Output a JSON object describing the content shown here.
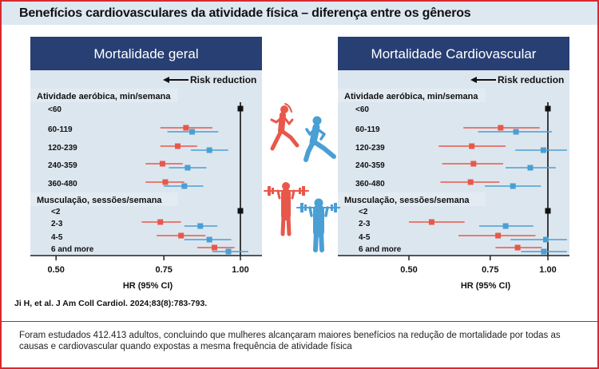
{
  "title": "Benefícios cardiovasculares da atividade física – diferença entre os gêneros",
  "citation": "Ji H, et al. J Am Coll Cardiol. 2024;83(8):783-793.",
  "summary": "Foram estudados 412.413 adultos, concluindo que mulheres alcançaram maiores benefícios na redução de mortalidade por todas as causas e cardiovascular quando expostas a mesma frequência de atividade física",
  "colors": {
    "female": "#e8584a",
    "male": "#4a9fd4",
    "reference": "#111111",
    "header": "#283f73",
    "panel_bg": "#dce6ef",
    "border": "#d9282f"
  },
  "icons": [
    "female-runner-icon",
    "male-runner-icon",
    "female-weightlifter-icon",
    "male-weightlifter-icon"
  ],
  "chart_data": [
    {
      "type": "forest",
      "title": "Mortalidade geral",
      "xlabel": "HR (95% CI)",
      "xscale": "log",
      "xticks": [
        "0.50",
        "0.75",
        "1.00"
      ],
      "annotation": "Risk reduction",
      "groups": [
        {
          "label": "Atividade aeróbica, min/semana",
          "rows": [
            {
              "label": "<60",
              "reference": 1.0
            },
            {
              "label": "60-119",
              "female": [
                0.815,
                0.74,
                0.9
              ],
              "male": [
                0.834,
                0.76,
                0.92
              ]
            },
            {
              "label": "120-239",
              "female": [
                0.79,
                0.74,
                0.85
              ],
              "male": [
                0.89,
                0.83,
                0.955
              ]
            },
            {
              "label": "240-359",
              "female": [
                0.746,
                0.7,
                0.805
              ],
              "male": [
                0.82,
                0.764,
                0.88
              ]
            },
            {
              "label": "360-480",
              "female": [
                0.754,
                0.7,
                0.81
              ],
              "male": [
                0.81,
                0.75,
                0.87
              ]
            }
          ]
        },
        {
          "label": "Musculação, sessões/semana",
          "rows": [
            {
              "label": "<2",
              "reference": 1.0
            },
            {
              "label": "2-3",
              "female": [
                0.74,
                0.69,
                0.8
              ],
              "male": [
                0.86,
                0.81,
                0.917
              ]
            },
            {
              "label": "4-5",
              "female": [
                0.8,
                0.73,
                0.877
              ],
              "male": [
                0.89,
                0.81,
                0.966
              ]
            },
            {
              "label": "6 and more",
              "female": [
                0.907,
                0.85,
                0.978
              ],
              "male": [
                0.956,
                0.9,
                1.03
              ]
            }
          ]
        }
      ]
    },
    {
      "type": "forest",
      "title": "Mortalidade Cardiovascular",
      "xlabel": "HR (95% CI)",
      "xscale": "log",
      "xticks": [
        "0.50",
        "0.75",
        "1.00"
      ],
      "annotation": "Risk reduction",
      "groups": [
        {
          "label": "Atividade aeróbica, min/semana",
          "rows": [
            {
              "label": "<60",
              "reference": 1.0
            },
            {
              "label": "60-119",
              "female": [
                0.79,
                0.656,
                0.96
              ],
              "male": [
                0.853,
                0.706,
                1.02
              ]
            },
            {
              "label": "120-239",
              "female": [
                0.684,
                0.58,
                0.81
              ],
              "male": [
                0.978,
                0.85,
                1.1
              ]
            },
            {
              "label": "240-359",
              "female": [
                0.69,
                0.59,
                0.8
              ],
              "male": [
                0.916,
                0.81,
                1.04
              ]
            },
            {
              "label": "360-480",
              "female": [
                0.68,
                0.585,
                0.785
              ],
              "male": [
                0.84,
                0.73,
                0.966
              ]
            }
          ]
        },
        {
          "label": "Musculação, sessões/semana",
          "rows": [
            {
              "label": "<2",
              "reference": 1.0
            },
            {
              "label": "2-3",
              "female": [
                0.56,
                0.5,
                0.66
              ],
              "male": [
                0.81,
                0.71,
                0.93
              ]
            },
            {
              "label": "4-5",
              "female": [
                0.78,
                0.64,
                0.94
              ],
              "male": [
                0.99,
                0.83,
                1.1
              ]
            },
            {
              "label": "6 and more",
              "female": [
                0.86,
                0.77,
                0.97
              ],
              "male": [
                0.98,
                0.875,
                1.1
              ]
            }
          ]
        }
      ]
    }
  ]
}
